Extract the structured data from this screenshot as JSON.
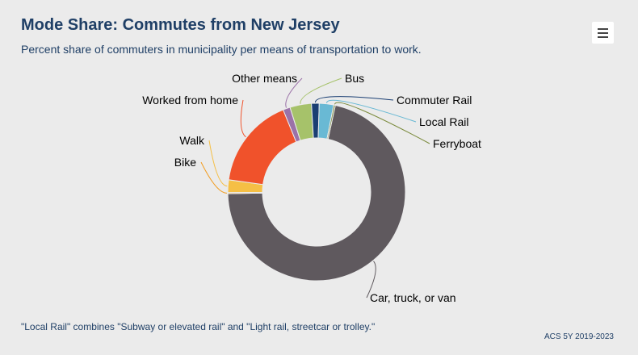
{
  "header": {
    "title": "Mode Share: Commutes from New Jersey",
    "subtitle": "Percent share of commuters in municipality per means of transportation to work."
  },
  "menu": {
    "icon": "hamburger-menu-icon"
  },
  "footer": {
    "note": "\"Local Rail\" combines \"Subway or elevated rail\" and \"Light rail, streetcar or trolley.\"",
    "source": "ACS 5Y 2019-2023"
  },
  "chart_data": {
    "type": "pie",
    "variant": "donut",
    "categories": [
      "Car, truck, or van",
      "Bike",
      "Walk",
      "Worked from home",
      "Other means",
      "Bus",
      "Commuter Rail",
      "Local Rail",
      "Ferryboat"
    ],
    "values": [
      71.1,
      0.2,
      2.3,
      16.6,
      1.3,
      3.9,
      1.4,
      2.6,
      0.3
    ],
    "colors": [
      "#5f595e",
      "#f29c1f",
      "#f5bf45",
      "#f0522b",
      "#9b72a8",
      "#a6c26a",
      "#1b3f73",
      "#69b9d4",
      "#7a8a3c"
    ]
  }
}
